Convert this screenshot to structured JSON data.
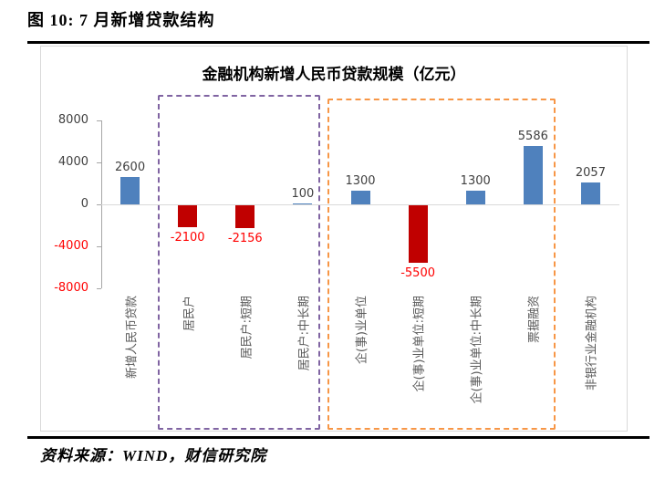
{
  "figure": {
    "title": "图 10: 7 月新增贷款结构"
  },
  "chart_data": {
    "type": "bar",
    "title": "金融机构新增人民币贷款规模（亿元）",
    "categories": [
      "新增人民币贷款",
      "居民户",
      "居民户:短期",
      "居民户:中长期",
      "企(事)业单位",
      "企(事)业单位:短期",
      "企(事)业单位:中长期",
      "票据融资",
      "非银行业金融机构"
    ],
    "values": [
      2600,
      -2100,
      -2156,
      100,
      1300,
      -5500,
      1300,
      5586,
      2057
    ],
    "ylim": [
      -8000,
      8000
    ],
    "yticks": [
      8000,
      4000,
      0,
      -4000,
      -8000
    ],
    "grid": "zero-line-only",
    "legend": "none",
    "colors": {
      "bar_positive": "#4F81BD",
      "bar_negative": "#C00000",
      "label_positive": "#404040",
      "label_negative": "#FF0000",
      "ytick_positive": "#404040",
      "ytick_negative": "#FF0000",
      "axis": "#a6a6a6"
    },
    "groups": [
      {
        "name": "household-loans-group",
        "color": "#8064A2",
        "from": 1,
        "to": 3
      },
      {
        "name": "corporate-loans-group",
        "color": "#F79646",
        "from": 4,
        "to": 7
      }
    ]
  },
  "source": {
    "text": "资料来源：WIND，财信研究院"
  }
}
